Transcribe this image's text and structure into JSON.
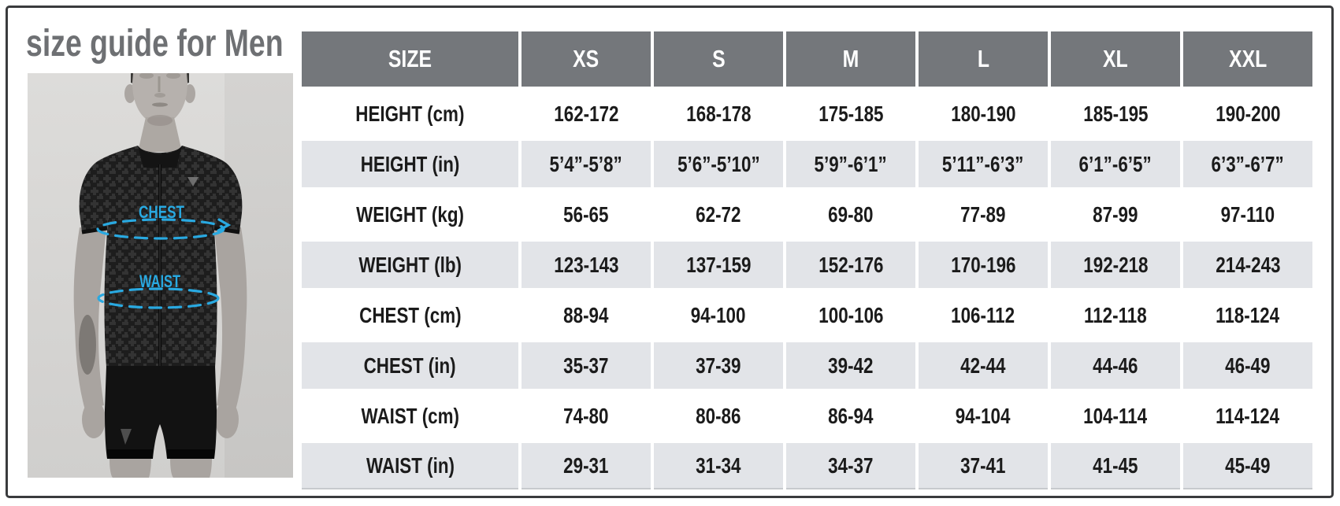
{
  "title": "size guide for Men",
  "colors": {
    "accent": "#29A9E1",
    "header_bg": "#74777B",
    "stripe": "#E2E4E8",
    "border": "#3A3B3D",
    "text": "#1B1B1B",
    "title_color": "#6E7073",
    "photo_bg": "#D8D7D5"
  },
  "figure": {
    "chest_label": "CHEST",
    "waist_label": "WAIST"
  },
  "table": {
    "columns": [
      "SIZE",
      "XS",
      "S",
      "M",
      "L",
      "XL",
      "XXL"
    ],
    "rows": [
      {
        "label": "HEIGHT (cm)",
        "values": [
          "162-172",
          "168-178",
          "175-185",
          "180-190",
          "185-195",
          "190-200"
        ]
      },
      {
        "label": "HEIGHT (in)",
        "values": [
          "5’4”-5’8”",
          "5’6”-5’10”",
          "5’9”-6’1”",
          "5’11”-6’3”",
          "6’1”-6’5”",
          "6’3”-6’7”"
        ]
      },
      {
        "label": "WEIGHT (kg)",
        "values": [
          "56-65",
          "62-72",
          "69-80",
          "77-89",
          "87-99",
          "97-110"
        ]
      },
      {
        "label": "WEIGHT (lb)",
        "values": [
          "123-143",
          "137-159",
          "152-176",
          "170-196",
          "192-218",
          "214-243"
        ]
      },
      {
        "label": "CHEST (cm)",
        "values": [
          "88-94",
          "94-100",
          "100-106",
          "106-112",
          "112-118",
          "118-124"
        ]
      },
      {
        "label": "CHEST (in)",
        "values": [
          "35-37",
          "37-39",
          "39-42",
          "42-44",
          "44-46",
          "46-49"
        ]
      },
      {
        "label": "WAIST (cm)",
        "values": [
          "74-80",
          "80-86",
          "86-94",
          "94-104",
          "104-114",
          "114-124"
        ]
      },
      {
        "label": "WAIST (in)",
        "values": [
          "29-31",
          "31-34",
          "34-37",
          "37-41",
          "41-45",
          "45-49"
        ]
      }
    ]
  }
}
